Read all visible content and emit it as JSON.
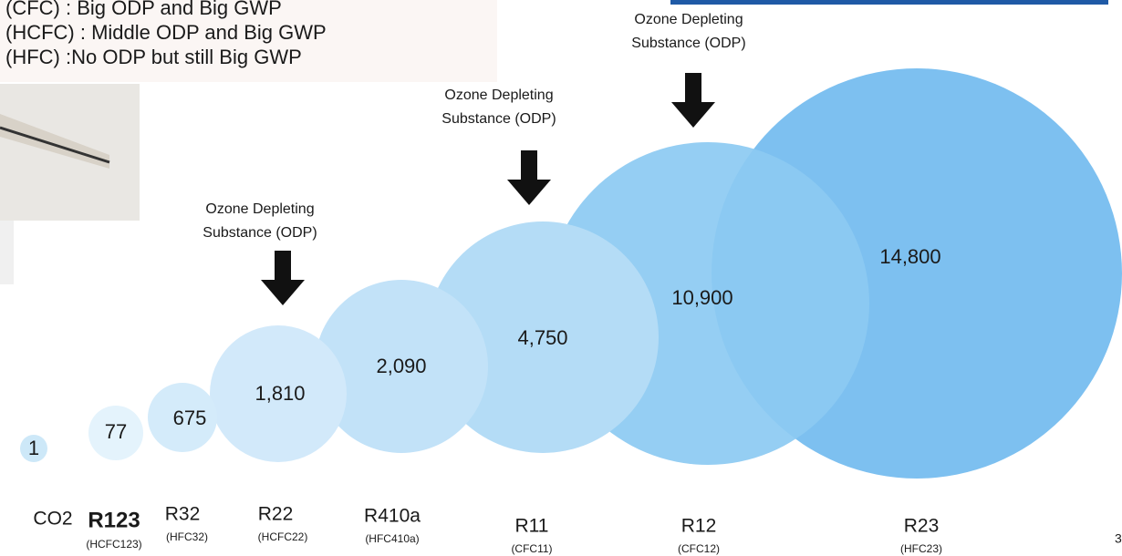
{
  "header": {
    "lines": [
      "(CFC)  : Big ODP and Big GWP",
      "(HCFC)  : Middle ODP and Big GWP",
      "(HFC) :No ODP but still Big GWP"
    ]
  },
  "items": [
    {
      "value": "1",
      "name": "CO2"
    },
    {
      "value": "77",
      "name": "R123",
      "sub": "(HCFC123)"
    },
    {
      "value": "675",
      "name": "R32",
      "sub": "(HFC32)"
    },
    {
      "value": "1,810",
      "name": "R22",
      "sub": "(HCFC22)"
    },
    {
      "value": "2,090",
      "name": "R410a",
      "sub": "(HFC410a)"
    },
    {
      "value": "4,750",
      "name": "R11",
      "sub": "(CFC11)"
    },
    {
      "value": "10,900",
      "name": "R12",
      "sub": "(CFC12)"
    },
    {
      "value": "14,800",
      "name": "R23",
      "sub": "(HFC23)"
    }
  ],
  "annotations": [
    {
      "lines": [
        "Ozone Depleting",
        "Substance (ODP)"
      ]
    },
    {
      "lines": [
        "Ozone Depleting",
        "Substance (ODP)"
      ]
    },
    {
      "lines": [
        "Ozone Depleting",
        "Substance (ODP)"
      ]
    }
  ],
  "page_number": "3"
}
